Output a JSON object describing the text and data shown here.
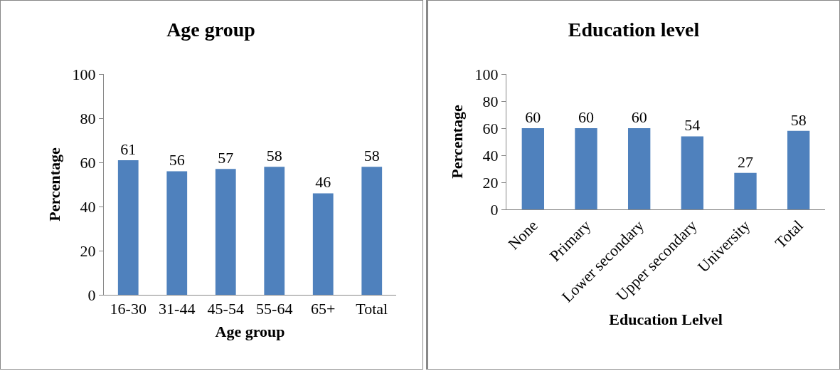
{
  "chart_data": [
    {
      "type": "bar",
      "title": "Age group",
      "xlabel": "Age group",
      "ylabel": "Percentage",
      "categories": [
        "16-30",
        "31-44",
        "45-54",
        "55-64",
        "65+",
        "Total"
      ],
      "values": [
        61,
        56,
        57,
        58,
        46,
        58
      ],
      "color": "#4f81bd",
      "ylim": [
        0,
        100
      ],
      "yticks": [
        0,
        20,
        40,
        60,
        80,
        100
      ],
      "grid": false,
      "legend": false,
      "data_labels": true
    },
    {
      "type": "bar",
      "title": "Education level",
      "xlabel": "Education Lelvel",
      "ylabel": "Percentage",
      "categories": [
        "None",
        "Primary",
        "Lower secondary",
        "Upper secondary",
        "University",
        "Total"
      ],
      "values": [
        60,
        60,
        60,
        54,
        27,
        58
      ],
      "color": "#4f81bd",
      "ylim": [
        0,
        100
      ],
      "yticks": [
        0,
        20,
        40,
        60,
        80,
        100
      ],
      "grid": false,
      "legend": false,
      "data_labels": true
    }
  ]
}
